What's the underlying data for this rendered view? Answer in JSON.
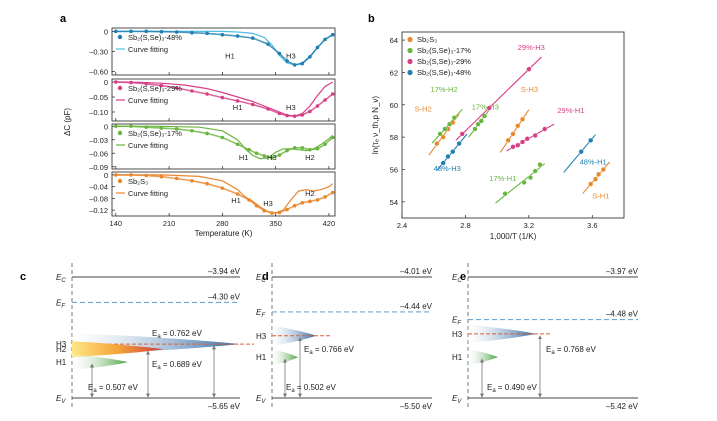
{
  "panel_letters": {
    "a": "a",
    "b": "b",
    "c": "c",
    "d": "d",
    "e": "e"
  },
  "colors": {
    "sb2s3": "#e8872e",
    "s17": "#6ab53f",
    "s29": "#d63f86",
    "s48": "#1f7fb0",
    "fit48": "#52bde6",
    "level_dash": "#6aa8d6",
    "h3_dash": "#e0603a"
  },
  "chart_data": [
    {
      "panel": "a",
      "type": "line",
      "xlabel": "Temperature (K)",
      "ylabel": "ΔC (pF)",
      "xlim": [
        135,
        428
      ],
      "xticks": [
        140,
        210,
        280,
        350,
        420
      ],
      "subplots": [
        {
          "name": "Sb2(S,Se)3-48%",
          "legend": [
            "Sb₂(S,Se)₃-48%",
            "Curve fitting"
          ],
          "color": "sb2s3",
          "colorKey": "s48",
          "fitColorKey": "fit48",
          "ylim": [
            -0.65,
            0.05
          ],
          "yticks": [
            0,
            -0.3,
            -0.6
          ],
          "ytick_labels": [
            "0",
            "–0.30",
            "–0.60"
          ],
          "peaks": [
            {
              "label": "H1",
              "x": 290,
              "y": -0.36
            },
            {
              "label": "H3",
              "x": 370,
              "y": -0.36
            }
          ],
          "data_x": [
            140,
            160,
            180,
            200,
            220,
            240,
            260,
            280,
            300,
            320,
            340,
            355,
            365,
            375,
            385,
            395,
            405,
            415,
            425
          ],
          "data_y": [
            0,
            0,
            0,
            -0.005,
            -0.01,
            -0.02,
            -0.03,
            -0.05,
            -0.07,
            -0.1,
            -0.19,
            -0.33,
            -0.44,
            -0.5,
            -0.48,
            -0.38,
            -0.24,
            -0.12,
            -0.05
          ],
          "fit_x": [
            140,
            180,
            220,
            250,
            280,
            300,
            320,
            335,
            345,
            355,
            365,
            375,
            385,
            395,
            405,
            415,
            425
          ],
          "fit_y": [
            0,
            0,
            0,
            0,
            0,
            -0.01,
            -0.03,
            -0.09,
            -0.2,
            -0.36,
            -0.47,
            -0.5,
            -0.47,
            -0.37,
            -0.24,
            -0.12,
            -0.05
          ]
        },
        {
          "name": "Sb2(S,Se)3-29%",
          "legend": [
            "Sb₂(S,Se)₃-29%",
            "Curve fitting"
          ],
          "colorKey": "s29",
          "fitColorKey": "s29",
          "ylim": [
            -0.13,
            0.01
          ],
          "yticks": [
            0,
            -0.05,
            -0.1
          ],
          "ytick_labels": [
            "0",
            "–0.05",
            "–0.10"
          ],
          "peaks": [
            {
              "label": "H1",
              "x": 300,
              "y": -0.083
            },
            {
              "label": "H3",
              "x": 370,
              "y": -0.083
            }
          ],
          "data_x": [
            140,
            160,
            180,
            200,
            220,
            240,
            260,
            280,
            300,
            320,
            340,
            355,
            365,
            375,
            385,
            395,
            405,
            415,
            425
          ],
          "data_y": [
            0,
            -0.002,
            -0.006,
            -0.012,
            -0.02,
            -0.03,
            -0.04,
            -0.052,
            -0.063,
            -0.075,
            -0.09,
            -0.105,
            -0.112,
            -0.114,
            -0.11,
            -0.098,
            -0.08,
            -0.06,
            -0.04
          ],
          "fit_x": [
            140,
            170,
            200,
            230,
            260,
            280,
            300,
            320,
            340,
            355,
            365,
            375,
            385,
            395,
            405,
            415,
            425
          ],
          "fit_y": [
            0,
            -0.001,
            -0.004,
            -0.01,
            -0.022,
            -0.035,
            -0.05,
            -0.065,
            -0.085,
            -0.1,
            -0.11,
            -0.114,
            -0.105,
            -0.08,
            -0.045,
            -0.015,
            0
          ]
        },
        {
          "name": "Sb2(S,Se)3-17%",
          "legend": [
            "Sb₂(S,Se)₃-17%",
            "Curve fitting"
          ],
          "colorKey": "s17",
          "fitColorKey": "s17",
          "ylim": [
            -0.095,
            0.005
          ],
          "yticks": [
            0,
            -0.03,
            -0.06,
            -0.09
          ],
          "ytick_labels": [
            "0",
            "–0.03",
            "–0.06",
            "–0.09"
          ],
          "peaks": [
            {
              "label": "H1",
              "x": 308,
              "y": -0.068
            },
            {
              "label": "H3",
              "x": 345,
              "y": -0.068
            },
            {
              "label": "H2",
              "x": 395,
              "y": -0.068
            }
          ],
          "data_x": [
            140,
            160,
            180,
            200,
            220,
            240,
            260,
            280,
            300,
            315,
            325,
            335,
            345,
            355,
            365,
            375,
            385,
            395,
            405,
            415,
            425
          ],
          "data_y": [
            0,
            0,
            -0.002,
            -0.004,
            -0.006,
            -0.01,
            -0.016,
            -0.025,
            -0.04,
            -0.052,
            -0.06,
            -0.066,
            -0.07,
            -0.064,
            -0.054,
            -0.048,
            -0.048,
            -0.052,
            -0.05,
            -0.04,
            -0.025
          ],
          "fit_x": [
            140,
            200,
            250,
            280,
            300,
            310,
            320,
            330,
            340,
            350,
            360,
            370,
            380,
            390,
            400,
            410,
            420,
            425
          ],
          "fit_y": [
            0,
            0,
            -0.002,
            -0.01,
            -0.03,
            -0.05,
            -0.065,
            -0.072,
            -0.07,
            -0.058,
            -0.05,
            -0.05,
            -0.052,
            -0.054,
            -0.05,
            -0.04,
            -0.028,
            -0.02
          ]
        },
        {
          "name": "Sb2S3",
          "legend": [
            "Sb₂S₃",
            "Curve fitting"
          ],
          "colorKey": "sb2s3",
          "fitColorKey": "sb2s3",
          "ylim": [
            -0.14,
            0.01
          ],
          "yticks": [
            0,
            -0.04,
            -0.08,
            -0.12
          ],
          "ytick_labels": [
            "0",
            "–0.04",
            "–0.08",
            "–0.12"
          ],
          "peaks": [
            {
              "label": "H1",
              "x": 298,
              "y": -0.085
            },
            {
              "label": "H3",
              "x": 340,
              "y": -0.095
            },
            {
              "label": "H2",
              "x": 395,
              "y": -0.062
            }
          ],
          "data_x": [
            140,
            160,
            180,
            200,
            220,
            240,
            260,
            280,
            300,
            315,
            325,
            335,
            345,
            355,
            365,
            375,
            385,
            395,
            405,
            415,
            425
          ],
          "data_y": [
            0,
            0,
            -0.002,
            -0.006,
            -0.012,
            -0.02,
            -0.03,
            -0.045,
            -0.065,
            -0.085,
            -0.105,
            -0.122,
            -0.13,
            -0.128,
            -0.118,
            -0.105,
            -0.095,
            -0.09,
            -0.085,
            -0.075,
            -0.06
          ],
          "fit_x": [
            140,
            200,
            250,
            280,
            300,
            310,
            320,
            330,
            340,
            350,
            360,
            370,
            380,
            390,
            400,
            410,
            420,
            425
          ],
          "fit_y": [
            0,
            0,
            -0.005,
            -0.02,
            -0.05,
            -0.075,
            -0.09,
            -0.11,
            -0.125,
            -0.13,
            -0.12,
            -0.085,
            -0.055,
            -0.05,
            -0.055,
            -0.05,
            -0.04,
            -0.03
          ]
        }
      ]
    },
    {
      "panel": "b",
      "type": "scatter",
      "xlabel": "1,000/T (1/K)",
      "ylabel": "ln(τₑ ν_th,p N_v)",
      "xlim": [
        2.4,
        3.8
      ],
      "ylim": [
        53,
        64.5
      ],
      "xticks": [
        2.4,
        2.8,
        3.2,
        3.6
      ],
      "xtick_labels": [
        "2.4",
        "2.8",
        "3.2",
        "3.6"
      ],
      "yticks": [
        54,
        56,
        58,
        60,
        62,
        64
      ],
      "legend": [
        "Sb₂S₃",
        "Sb₂(S,Se)₃-17%",
        "Sb₂(S,Se)₃-29%",
        "Sb₂(S,Se)₃-48%"
      ],
      "legendColorKeys": [
        "sb2s3",
        "s17",
        "s29",
        "s48"
      ],
      "series": [
        {
          "label": "S-H2",
          "colorKey": "sb2s3",
          "x": [
            2.62,
            2.66,
            2.69,
            2.72
          ],
          "y": [
            57.6,
            58.0,
            58.5,
            58.9
          ],
          "line": [
            2.57,
            2.76
          ],
          "label_x": 2.48,
          "label_y": 59.6
        },
        {
          "label": "S-H3",
          "colorKey": "sb2s3",
          "x": [
            3.07,
            3.1,
            3.13,
            3.16
          ],
          "y": [
            57.8,
            58.2,
            58.7,
            59.1
          ],
          "line": [
            3.02,
            3.2
          ],
          "label_x": 3.15,
          "label_y": 60.8
        },
        {
          "label": "S-H1",
          "colorKey": "sb2s3",
          "x": [
            3.59,
            3.62,
            3.64,
            3.67
          ],
          "y": [
            55.1,
            55.4,
            55.7,
            56.0
          ],
          "line": [
            3.54,
            3.71
          ],
          "label_x": 3.6,
          "label_y": 54.2
        },
        {
          "label": "17%-H2",
          "colorKey": "s17",
          "x": [
            2.64,
            2.67,
            2.7,
            2.73
          ],
          "y": [
            58.2,
            58.5,
            58.8,
            59.2
          ],
          "line": [
            2.59,
            2.78
          ],
          "label_x": 2.58,
          "label_y": 60.8
        },
        {
          "label": "17%-H3",
          "colorKey": "s17",
          "x": [
            2.86,
            2.88,
            2.9,
            2.92
          ],
          "y": [
            58.5,
            58.8,
            59.0,
            59.3
          ],
          "line": [
            2.82,
            2.95
          ],
          "label_x": 2.84,
          "label_y": 59.7
        },
        {
          "label": "17%-H1",
          "colorKey": "s17",
          "x": [
            3.05,
            3.17,
            3.21,
            3.24,
            3.27
          ],
          "y": [
            54.5,
            55.2,
            55.5,
            55.9,
            56.3
          ],
          "line": [
            2.99,
            3.3
          ],
          "label_x": 2.95,
          "label_y": 55.3
        },
        {
          "label": "29%-H3",
          "colorKey": "s29",
          "x": [
            2.78,
            2.95,
            3.2
          ],
          "y": [
            58.2,
            59.8,
            62.2
          ],
          "line": [
            2.74,
            3.28
          ],
          "label_x": 3.13,
          "label_y": 63.4
        },
        {
          "label": "29%-H1",
          "colorKey": "s29",
          "x": [
            3.1,
            3.13,
            3.16,
            3.19,
            3.24,
            3.3
          ],
          "y": [
            57.4,
            57.5,
            57.7,
            57.9,
            58.1,
            58.5
          ],
          "line": [
            3.06,
            3.36
          ],
          "label_x": 3.38,
          "label_y": 59.5
        },
        {
          "label": "48%-H3",
          "colorKey": "s48",
          "x": [
            2.66,
            2.69,
            2.72,
            2.76
          ],
          "y": [
            56.4,
            56.8,
            57.1,
            57.6
          ],
          "line": [
            2.62,
            2.81
          ],
          "label_x": 2.6,
          "label_y": 55.9
        },
        {
          "label": "48%-H1",
          "colorKey": "s48",
          "x": [
            3.53,
            3.59
          ],
          "y": [
            57.1,
            57.8
          ],
          "line": [
            3.42,
            3.62
          ],
          "label_x": 3.52,
          "label_y": 56.3
        }
      ]
    }
  ],
  "band_diagrams": [
    {
      "panel": "c",
      "ec_label": "E_C",
      "ef_label": "E_F",
      "ev_label": "E_V",
      "ec": -3.94,
      "ef": -4.3,
      "ev": -5.65,
      "ec_text": "–3.94 eV",
      "ef_text": "–4.30 eV",
      "ev_text": "–5.65 eV",
      "traps": [
        {
          "label": "H3",
          "ea_text": "E_a = 0.762 eV",
          "ea": 0.762,
          "color": "s48"
        },
        {
          "label": "H2",
          "ea_text": "E_a = 0.689 eV",
          "ea": 0.689,
          "color": "s29"
        },
        {
          "label": "H1",
          "ea_text": "E_a = 0.507 eV",
          "ea": 0.507,
          "color": "s17"
        }
      ]
    },
    {
      "panel": "d",
      "ec_label": "E_C",
      "ef_label": "E_F",
      "ev_label": "E_V",
      "ec": -4.01,
      "ef": -4.44,
      "ev": -5.5,
      "ec_text": "–4.01 eV",
      "ef_text": "–4.44 eV",
      "ev_text": "–5.50 eV",
      "traps": [
        {
          "label": "H3",
          "ea_text": "E_a = 0.766 eV",
          "ea": 0.766,
          "color": "s48"
        },
        {
          "label": "H1",
          "ea_text": "E_a = 0.502 eV",
          "ea": 0.502,
          "color": "s17"
        }
      ]
    },
    {
      "panel": "e",
      "ec_label": "E_C",
      "ef_label": "E_F",
      "ev_label": "E_V",
      "ec": -3.97,
      "ef": -4.48,
      "ev": -5.42,
      "ec_text": "–3.97 eV",
      "ef_text": "–4.48 eV",
      "ev_text": "–5.42 eV",
      "traps": [
        {
          "label": "H3",
          "ea_text": "E_a = 0.768 eV",
          "ea": 0.768,
          "color": "s48"
        },
        {
          "label": "H1",
          "ea_text": "E_a = 0.490 eV",
          "ea": 0.49,
          "color": "s17"
        }
      ]
    }
  ]
}
